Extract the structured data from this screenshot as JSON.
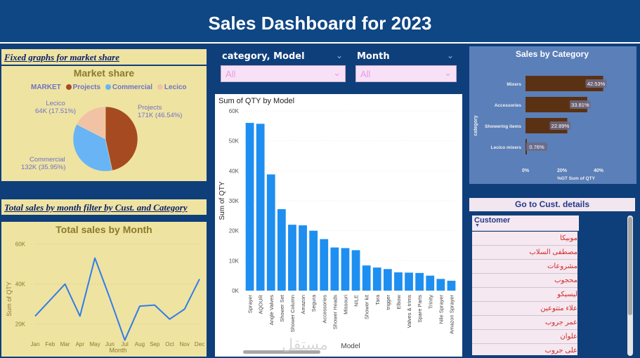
{
  "header": {
    "title": "Sales Dashboard for 2023"
  },
  "market": {
    "caption": "Fixed graphs for market share",
    "title": "Market share",
    "legend_title": "MARKET",
    "legend": [
      {
        "name": "Projects",
        "color": "#a64b21"
      },
      {
        "name": "Commercial",
        "color": "#68b4f5"
      },
      {
        "name": "Lecico",
        "color": "#f2c2a4"
      }
    ],
    "labels": {
      "lecico": [
        "Lecico",
        "64K (17.51%)"
      ],
      "projects": [
        "Projects",
        "171K (46.54%)"
      ],
      "commercial": [
        "Commercial",
        "132K (35.95%)"
      ]
    }
  },
  "monthly": {
    "caption": "Total sales by month filter by Cust. and Category",
    "title": "Total sales by Month",
    "ylabel": "Sum of QTY",
    "xlabel": "Month"
  },
  "filters": {
    "category": {
      "label": "category, Model",
      "value": "All"
    },
    "month": {
      "label": "Month",
      "value": "All"
    }
  },
  "model_chart": {
    "title": "Sum of QTY by Model",
    "ylabel": "Sum of QTY",
    "xlabel": "Model"
  },
  "category_chart": {
    "title": "Sales by Category",
    "ylabel": "category",
    "xlabel": "%GT Sum of QTY"
  },
  "customers": {
    "button": "Go to Cust. details",
    "header": "Customer",
    "items": [
      "موبيكا",
      "مصطفى السلاب",
      "مشروعات",
      "محجوب",
      "ليسيكو",
      "علاء متتوعين",
      "عمر جروب",
      "علوان",
      "على جروب"
    ]
  },
  "watermark": "مستقل",
  "chart_data": [
    {
      "type": "pie",
      "title": "Market share",
      "categories": [
        "Projects",
        "Commercial",
        "Lecico"
      ],
      "values": [
        171,
        132,
        64
      ],
      "percent": [
        46.54,
        35.95,
        17.51
      ],
      "colors": [
        "#a64b21",
        "#68b4f5",
        "#f2c2a4"
      ]
    },
    {
      "type": "line",
      "title": "Total sales by Month",
      "xlabel": "Month",
      "ylabel": "Sum of QTY",
      "categories": [
        "Jan",
        "Feb",
        "Mar",
        "Apr",
        "May",
        "Jun",
        "Jul",
        "Aug",
        "Sep",
        "Oct",
        "Nov",
        "Dec"
      ],
      "values": [
        24000,
        32000,
        40000,
        24000,
        53000,
        33000,
        12000,
        29000,
        29500,
        22500,
        27500,
        42500
      ],
      "yticks": [
        20000,
        40000,
        60000
      ],
      "ytick_labels": [
        "20K",
        "40K",
        "60K"
      ],
      "ylim": [
        15000,
        62000
      ],
      "color": "#2f7de8"
    },
    {
      "type": "bar",
      "title": "Sum of QTY by Model",
      "xlabel": "Model",
      "ylabel": "Sum of QTY",
      "categories": [
        "Sprayer",
        "AQOUR",
        "Angle Valves",
        "Shower Set",
        "Shower Column",
        "Amazon",
        "Segura",
        "Accessories",
        "Shower Heads",
        "Missouri",
        "NILE",
        "Shower kit",
        "Tara",
        "trigger",
        "Elbow",
        "Valves & trims",
        "Spare Parts",
        "Trinity",
        "Nile Sprayer",
        "Amazon Sprayer"
      ],
      "values": [
        56000,
        55700,
        38800,
        27200,
        22000,
        21800,
        20000,
        17200,
        14400,
        14200,
        13500,
        8400,
        7700,
        7200,
        6100,
        6000,
        5900,
        5000,
        3900,
        3300
      ],
      "yticks": [
        0,
        10000,
        20000,
        30000,
        40000,
        50000,
        60000
      ],
      "ytick_labels": [
        "0K",
        "10K",
        "20K",
        "30K",
        "40K",
        "50K",
        "60K"
      ],
      "ylim": [
        0,
        60000
      ],
      "color": "#1e8ff0"
    },
    {
      "type": "bar",
      "orientation": "horizontal",
      "title": "Sales by Category",
      "xlabel": "%GT Sum of QTY",
      "ylabel": "category",
      "categories": [
        "Mixers",
        "Accessories",
        "Showering items",
        "Lecico mixers"
      ],
      "values": [
        42.53,
        33.81,
        22.89,
        0.76
      ],
      "value_labels": [
        "42.53%",
        "33.81%",
        "22.89%",
        "0.76%"
      ],
      "xticks": [
        0,
        20,
        40
      ],
      "xtick_labels": [
        "0%",
        "20%",
        "40%"
      ],
      "xlim": [
        0,
        40
      ],
      "color": "#5a3213"
    }
  ]
}
